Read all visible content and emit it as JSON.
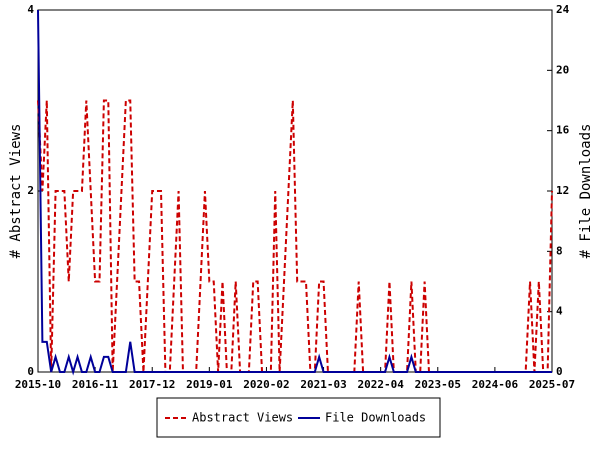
{
  "chart_data": {
    "type": "line",
    "y_label": "# Abstract Views",
    "y2_label": "# File Downloads",
    "x": [
      "2015-10",
      "2015-11",
      "2015-12",
      "2016-01",
      "2016-02",
      "2016-03",
      "2016-04",
      "2016-05",
      "2016-06",
      "2016-07",
      "2016-08",
      "2016-09",
      "2016-10",
      "2016-11",
      "2016-12",
      "2017-01",
      "2017-02",
      "2017-03",
      "2017-04",
      "2017-05",
      "2017-06",
      "2017-07",
      "2017-08",
      "2017-09",
      "2017-10",
      "2017-11",
      "2017-12",
      "2018-01",
      "2018-02",
      "2018-03",
      "2018-04",
      "2018-05",
      "2018-06",
      "2018-07",
      "2018-08",
      "2018-09",
      "2018-10",
      "2018-11",
      "2018-12",
      "2019-01",
      "2019-02",
      "2019-03",
      "2019-04",
      "2019-05",
      "2019-06",
      "2019-07",
      "2019-08",
      "2019-09",
      "2019-10",
      "2019-11",
      "2019-12",
      "2020-01",
      "2020-02",
      "2020-03",
      "2020-04",
      "2020-05",
      "2020-06",
      "2020-07",
      "2020-08",
      "2020-09",
      "2020-10",
      "2020-11",
      "2020-12",
      "2021-01",
      "2021-02",
      "2021-03",
      "2021-04",
      "2021-05",
      "2021-06",
      "2021-07",
      "2021-08",
      "2021-09",
      "2021-10",
      "2021-11",
      "2021-12",
      "2022-01",
      "2022-02",
      "2022-03",
      "2022-04",
      "2022-05",
      "2022-06",
      "2022-07",
      "2022-08",
      "2022-09",
      "2022-10",
      "2022-11",
      "2022-12",
      "2023-01",
      "2023-02",
      "2023-03",
      "2023-04",
      "2023-05",
      "2023-06",
      "2023-07",
      "2023-08",
      "2023-09",
      "2023-10",
      "2023-11",
      "2023-12",
      "2024-01",
      "2024-02",
      "2024-03",
      "2024-04",
      "2024-05",
      "2024-06",
      "2024-07",
      "2024-08",
      "2024-09",
      "2024-10",
      "2024-11",
      "2024-12",
      "2025-01",
      "2025-02",
      "2025-03",
      "2025-04",
      "2025-05",
      "2025-06",
      "2025-07"
    ],
    "xticks": [
      "2015-10",
      "2016-11",
      "2017-12",
      "2019-01",
      "2020-02",
      "2021-03",
      "2022-04",
      "2023-05",
      "2024-06",
      "2025-07"
    ],
    "ylim": [
      0,
      4
    ],
    "yticks": [
      0,
      2,
      4
    ],
    "y2lim": [
      0,
      24
    ],
    "y2ticks": [
      0,
      4,
      8,
      12,
      16,
      20,
      24
    ],
    "series": [
      {
        "name": "Abstract Views",
        "color": "#cc0000",
        "dashed": true,
        "values": [
          3,
          2,
          3,
          0,
          2,
          2,
          2,
          1,
          2,
          2,
          2,
          3,
          2,
          1,
          1,
          3,
          3,
          0,
          1,
          2,
          3,
          3,
          1,
          1,
          0,
          1,
          2,
          2,
          2,
          0,
          0,
          1,
          2,
          0,
          0,
          0,
          0,
          1,
          2,
          1,
          1,
          0,
          1,
          0,
          0,
          1,
          0,
          0,
          0,
          1,
          1,
          0,
          0,
          0,
          2,
          0,
          1,
          2,
          3,
          1,
          1,
          1,
          0,
          0,
          1,
          1,
          0,
          0,
          0,
          0,
          0,
          0,
          0,
          1,
          0,
          0,
          0,
          0,
          0,
          0,
          1,
          0,
          0,
          0,
          0,
          1,
          0,
          0,
          1,
          0,
          0,
          0,
          0,
          0,
          0,
          0,
          0,
          0,
          0,
          0,
          0,
          0,
          0,
          0,
          0,
          0,
          0,
          0,
          0,
          0,
          0,
          0,
          1,
          0,
          1,
          0,
          0,
          2
        ]
      },
      {
        "name": "File Downloads",
        "color": "#000099",
        "dashed": false,
        "axis": "y2",
        "values": [
          24,
          2,
          2,
          0,
          1,
          0,
          0,
          1,
          0,
          1,
          0,
          0,
          1,
          0,
          0,
          1,
          1,
          0,
          0,
          0,
          0,
          2,
          0,
          0,
          0,
          0,
          0,
          0,
          0,
          0,
          0,
          0,
          0,
          0,
          0,
          0,
          0,
          0,
          0,
          0,
          0,
          0,
          0,
          0,
          0,
          0,
          0,
          0,
          0,
          0,
          0,
          0,
          0,
          0,
          0,
          0,
          0,
          0,
          0,
          0,
          0,
          0,
          0,
          0,
          1,
          0,
          0,
          0,
          0,
          0,
          0,
          0,
          0,
          0,
          0,
          0,
          0,
          0,
          0,
          0,
          1,
          0,
          0,
          0,
          0,
          1,
          0,
          0,
          0,
          0,
          0,
          0,
          0,
          0,
          0,
          0,
          0,
          0,
          0,
          0,
          0,
          0,
          0,
          0,
          0,
          0,
          0,
          0,
          0,
          0,
          0,
          0,
          0,
          0,
          0,
          0,
          0,
          0
        ]
      }
    ]
  }
}
